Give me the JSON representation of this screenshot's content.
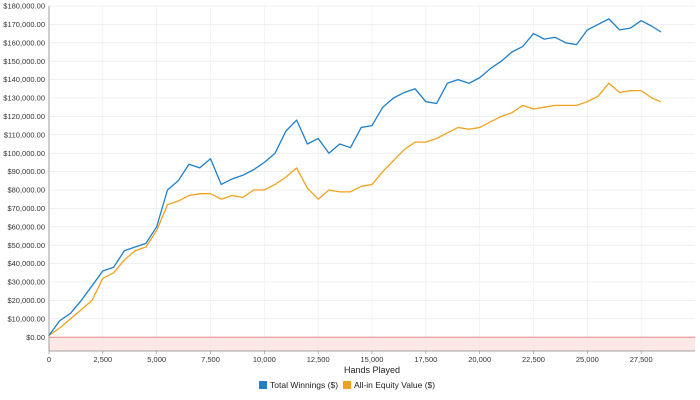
{
  "chart_data": {
    "type": "line",
    "title": "",
    "xlabel": "Hands Played",
    "ylabel": "",
    "xlim": [
      0,
      30000
    ],
    "ylim": [
      -7500,
      180000
    ],
    "grid": true,
    "legend_position": "bottom",
    "negative_region_color": "#fde8e8",
    "x_ticks": [
      {
        "value": 0,
        "label": "0"
      },
      {
        "value": 2500,
        "label": "2,500"
      },
      {
        "value": 5000,
        "label": "5,000"
      },
      {
        "value": 7500,
        "label": "7,500"
      },
      {
        "value": 10000,
        "label": "10,000"
      },
      {
        "value": 12500,
        "label": "12,500"
      },
      {
        "value": 15000,
        "label": "15,000"
      },
      {
        "value": 17500,
        "label": "17,500"
      },
      {
        "value": 20000,
        "label": "20,000"
      },
      {
        "value": 22500,
        "label": "22,500"
      },
      {
        "value": 25000,
        "label": "25,000"
      },
      {
        "value": 27500,
        "label": "27,500"
      }
    ],
    "y_ticks": [
      {
        "value": 0,
        "label": "$0.00"
      },
      {
        "value": 10000,
        "label": "$10,000.00"
      },
      {
        "value": 20000,
        "label": "$20,000.00"
      },
      {
        "value": 30000,
        "label": "$30,000.00"
      },
      {
        "value": 40000,
        "label": "$40,000.00"
      },
      {
        "value": 50000,
        "label": "$50,000.00"
      },
      {
        "value": 60000,
        "label": "$60,000.00"
      },
      {
        "value": 70000,
        "label": "$70,000.00"
      },
      {
        "value": 80000,
        "label": "$80,000.00"
      },
      {
        "value": 90000,
        "label": "$90,000.00"
      },
      {
        "value": 100000,
        "label": "$100,000.00"
      },
      {
        "value": 110000,
        "label": "$110,000.00"
      },
      {
        "value": 120000,
        "label": "$120,000.00"
      },
      {
        "value": 130000,
        "label": "$130,000.00"
      },
      {
        "value": 140000,
        "label": "$140,000.00"
      },
      {
        "value": 150000,
        "label": "$150,000.00"
      },
      {
        "value": 160000,
        "label": "$160,000.00"
      },
      {
        "value": 170000,
        "label": "$170,000.00"
      },
      {
        "value": 180000,
        "label": "$180,000.00"
      }
    ],
    "series": [
      {
        "name": "Total Winnings ($)",
        "color": "#1f7fc9",
        "x": [
          0,
          500,
          1000,
          1500,
          2000,
          2500,
          3000,
          3500,
          4000,
          4500,
          5000,
          5500,
          6000,
          6500,
          7000,
          7500,
          8000,
          8500,
          9000,
          9500,
          10000,
          10500,
          11000,
          11500,
          12000,
          12500,
          13000,
          13500,
          14000,
          14500,
          15000,
          15500,
          16000,
          16500,
          17000,
          17500,
          18000,
          18500,
          19000,
          19500,
          20000,
          20500,
          21000,
          21500,
          22000,
          22500,
          23000,
          23500,
          24000,
          24500,
          25000,
          25500,
          26000,
          26500,
          27000,
          27500,
          28000,
          28400
        ],
        "y": [
          1000,
          9000,
          13000,
          20000,
          28000,
          36000,
          38000,
          47000,
          49000,
          51000,
          60000,
          80000,
          85000,
          94000,
          92000,
          97000,
          83000,
          86000,
          88000,
          91000,
          95000,
          100000,
          112000,
          118000,
          105000,
          108000,
          100000,
          105000,
          103000,
          114000,
          115000,
          125000,
          130000,
          133000,
          135000,
          128000,
          127000,
          138000,
          140000,
          138000,
          141000,
          146000,
          150000,
          155000,
          158000,
          165000,
          162000,
          163000,
          160000,
          159000,
          167000,
          170000,
          173000,
          167000,
          168000,
          172000,
          169000,
          166000
        ]
      },
      {
        "name": "All-in Equity Value ($)",
        "color": "#f2a11d",
        "x": [
          0,
          500,
          1000,
          1500,
          2000,
          2500,
          3000,
          3500,
          4000,
          4500,
          5000,
          5500,
          6000,
          6500,
          7000,
          7500,
          8000,
          8500,
          9000,
          9500,
          10000,
          10500,
          11000,
          11500,
          12000,
          12500,
          13000,
          13500,
          14000,
          14500,
          15000,
          15500,
          16000,
          16500,
          17000,
          17500,
          18000,
          18500,
          19000,
          19500,
          20000,
          20500,
          21000,
          21500,
          22000,
          22500,
          23000,
          23500,
          24000,
          24500,
          25000,
          25500,
          26000,
          26500,
          27000,
          27500,
          28000,
          28400
        ],
        "y": [
          1000,
          5000,
          10000,
          15000,
          20000,
          32000,
          35000,
          42000,
          47000,
          49000,
          58000,
          72000,
          74000,
          77000,
          78000,
          78000,
          75000,
          77000,
          76000,
          80000,
          80000,
          83000,
          87000,
          92000,
          81000,
          75000,
          80000,
          79000,
          79000,
          82000,
          83000,
          90000,
          96000,
          102000,
          106000,
          106000,
          108000,
          111000,
          114000,
          113000,
          114000,
          117000,
          120000,
          122000,
          126000,
          124000,
          125000,
          126000,
          126000,
          126000,
          128000,
          131000,
          138000,
          133000,
          134000,
          134000,
          130000,
          128000
        ]
      }
    ]
  }
}
